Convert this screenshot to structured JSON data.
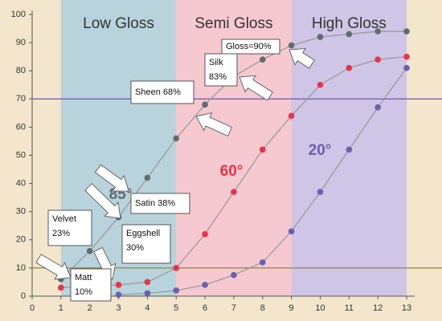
{
  "chart_data": {
    "type": "line",
    "regions": [
      {
        "label": "Low Gloss",
        "range": [
          1,
          5
        ],
        "color": "#b8d3dc"
      },
      {
        "label": "Semi Gloss",
        "range": [
          5,
          9
        ],
        "color": "#f6c8d0"
      },
      {
        "label": "High Gloss",
        "range": [
          9,
          13
        ],
        "color": "#cfc5e6"
      }
    ],
    "reference_lines": [
      {
        "value": 70,
        "color": "#7a5fb0"
      },
      {
        "value": 10,
        "color": "#8a8a3a"
      }
    ],
    "x": [
      1,
      2,
      3,
      4,
      5,
      6,
      7,
      8,
      9,
      10,
      11,
      12,
      13
    ],
    "line_color": "#9a9a9a",
    "series": [
      {
        "name": "85°",
        "color": "#5f6b70",
        "values": [
          6,
          16,
          28,
          42,
          56,
          68,
          78,
          84,
          89,
          92,
          93,
          94,
          94
        ]
      },
      {
        "name": "60°",
        "color": "#e5344a",
        "values": [
          3,
          3.5,
          4,
          5,
          10,
          22,
          37,
          52,
          64,
          75,
          81,
          84,
          85
        ]
      },
      {
        "name": "20°",
        "color": "#6a5fb0",
        "values": [
          null,
          null,
          0.5,
          1,
          2,
          4,
          7.5,
          12,
          23,
          37,
          52,
          67,
          81
        ]
      }
    ],
    "xlim": [
      0,
      13
    ],
    "ylim": [
      0,
      100
    ],
    "xticks": [
      0,
      1,
      2,
      3,
      4,
      5,
      6,
      7,
      8,
      9,
      10,
      11,
      12,
      13
    ],
    "yticks": [
      0,
      10,
      20,
      30,
      40,
      50,
      60,
      70,
      80,
      90,
      100
    ],
    "annotations": [
      [
        "Gloss=90%"
      ],
      [
        "Silk",
        "83%"
      ],
      [
        "Sheen 68%"
      ],
      [
        "Satin 38%"
      ],
      [
        "Eggshell",
        "30%"
      ],
      [
        "Velvet",
        "23%"
      ],
      [
        "Matt",
        "10%"
      ]
    ]
  }
}
